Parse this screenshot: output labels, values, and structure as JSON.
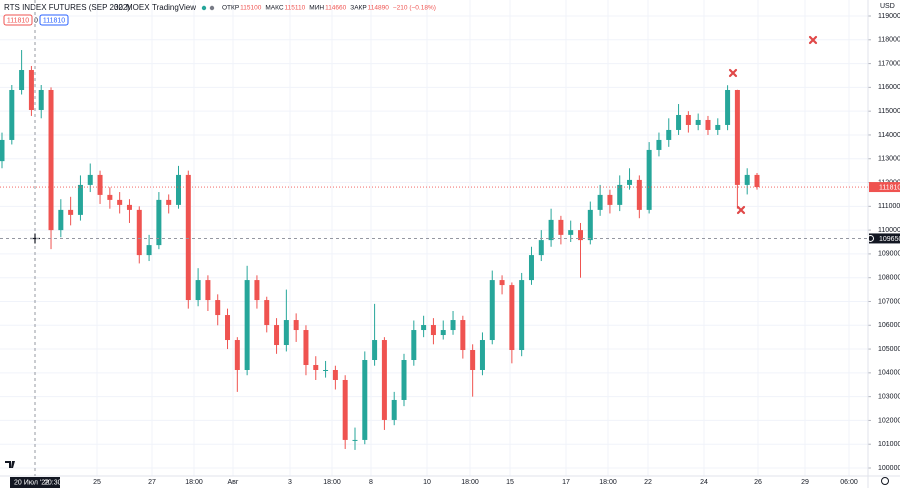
{
  "chart_data": {
    "type": "candlestick",
    "title": "RTS INDEX FUTURES (SEP 2022)",
    "interval": "30",
    "exchange": "MOEX",
    "source": "TradingView",
    "ohlc_legend": [
      {
        "label": "ОТКР",
        "value": 115100
      },
      {
        "label": "МАКС",
        "value": 115110
      },
      {
        "label": "МИН",
        "value": 114660
      },
      {
        "label": "ЗАКР",
        "value": 114890
      }
    ],
    "change": "−210 (−0.18%)",
    "trade_panel": [
      "111810",
      "0",
      "111810"
    ],
    "currency": "USD",
    "up_color": "#26a69a",
    "down_color": "#ef5350",
    "grid": true,
    "ylim": [
      99664,
      119673
    ],
    "yticks": [
      100000,
      101000,
      102000,
      103000,
      104000,
      105000,
      106000,
      107000,
      108000,
      109000,
      110000,
      111000,
      112000,
      113000,
      114000,
      115000,
      116000,
      117000,
      118000,
      119000
    ],
    "x_labels": [
      "25",
      "27",
      "18:00",
      "Авг",
      "3",
      "18:00",
      "8",
      "10",
      "18:00",
      "15",
      "17",
      "18:00",
      "22",
      "24",
      "26",
      "29",
      "06:00"
    ],
    "crosshair_time": "20 Июл '22",
    "crosshair_clock": "20:30",
    "crosshair_price": 109650,
    "last_price": 111810,
    "open": [
      112900,
      113790,
      115890,
      116730,
      115050,
      115890,
      110000,
      110850,
      110640,
      111900,
      112320,
      111480,
      111270,
      111060,
      110850,
      108950,
      109370,
      111270,
      111060,
      112320,
      107060,
      107900,
      107060,
      106430,
      105380,
      104120,
      107900,
      107060,
      106010,
      105170,
      106220,
      105800,
      104330,
      104120,
      104120,
      103700,
      101180,
      101180,
      104540,
      105380,
      102020,
      102860,
      104540,
      105800,
      106010,
      105590,
      105800,
      106220,
      104960,
      104120,
      105380,
      107900,
      107690,
      104960,
      107900,
      108950,
      109580,
      110430,
      109800,
      110000,
      109580,
      110850,
      111480,
      111060,
      111900,
      112110,
      110850,
      113370,
      113790,
      114210,
      114840,
      114420,
      114630,
      114210,
      114420,
      115890,
      111900,
      112320
    ],
    "high": [
      114100,
      116100,
      117570,
      116900,
      116100,
      116000,
      111300,
      111400,
      112300,
      112800,
      112500,
      111800,
      111600,
      111300,
      111000,
      109800,
      111600,
      111500,
      112700,
      112500,
      108400,
      108100,
      107300,
      106700,
      105500,
      108500,
      108100,
      107200,
      106300,
      107500,
      106500,
      106000,
      104700,
      104500,
      104300,
      103900,
      101700,
      104900,
      106900,
      105500,
      103200,
      104800,
      106200,
      106400,
      106300,
      106200,
      106600,
      106400,
      105200,
      105700,
      108300,
      108100,
      107800,
      108200,
      109300,
      110000,
      110900,
      110600,
      110400,
      110300,
      111200,
      111900,
      111700,
      112300,
      112600,
      112300,
      113700,
      114100,
      114700,
      115300,
      115000,
      114900,
      114800,
      114700,
      116090,
      115900,
      112600,
      112400
    ],
    "low": [
      112600,
      113600,
      115700,
      114800,
      114700,
      109200,
      109700,
      110200,
      110400,
      111600,
      111100,
      110900,
      110700,
      110300,
      108600,
      108700,
      109200,
      110700,
      110900,
      106700,
      106800,
      106600,
      106000,
      105000,
      103200,
      103900,
      106700,
      105700,
      104800,
      104900,
      105300,
      103900,
      103700,
      103800,
      103300,
      100800,
      100760,
      101000,
      104300,
      101600,
      101800,
      102600,
      104300,
      105500,
      105200,
      105400,
      105600,
      104600,
      103000,
      103900,
      105200,
      107300,
      104400,
      104700,
      107700,
      108700,
      109300,
      109400,
      109500,
      108000,
      109400,
      110600,
      110700,
      110800,
      111700,
      110500,
      110700,
      113100,
      113500,
      114000,
      114100,
      114200,
      114000,
      114000,
      114200,
      110900,
      111500,
      111700
    ],
    "close": [
      113790,
      115890,
      116730,
      115050,
      115890,
      110000,
      110850,
      110640,
      111900,
      112320,
      111480,
      111270,
      111060,
      110850,
      108950,
      109370,
      111270,
      111060,
      112320,
      107060,
      107900,
      107060,
      106430,
      105380,
      104120,
      107900,
      107060,
      106010,
      105170,
      106220,
      105800,
      104330,
      104120,
      104120,
      103700,
      101180,
      101180,
      104540,
      105380,
      102020,
      102860,
      104540,
      105800,
      106010,
      105590,
      105800,
      106220,
      104960,
      104120,
      105380,
      107900,
      107690,
      104960,
      107900,
      108950,
      109580,
      110430,
      109800,
      110000,
      109580,
      110850,
      111480,
      111060,
      111900,
      112110,
      110850,
      113370,
      113790,
      114210,
      114840,
      114420,
      114630,
      114210,
      114420,
      115890,
      111900,
      112320,
      111810
    ]
  }
}
